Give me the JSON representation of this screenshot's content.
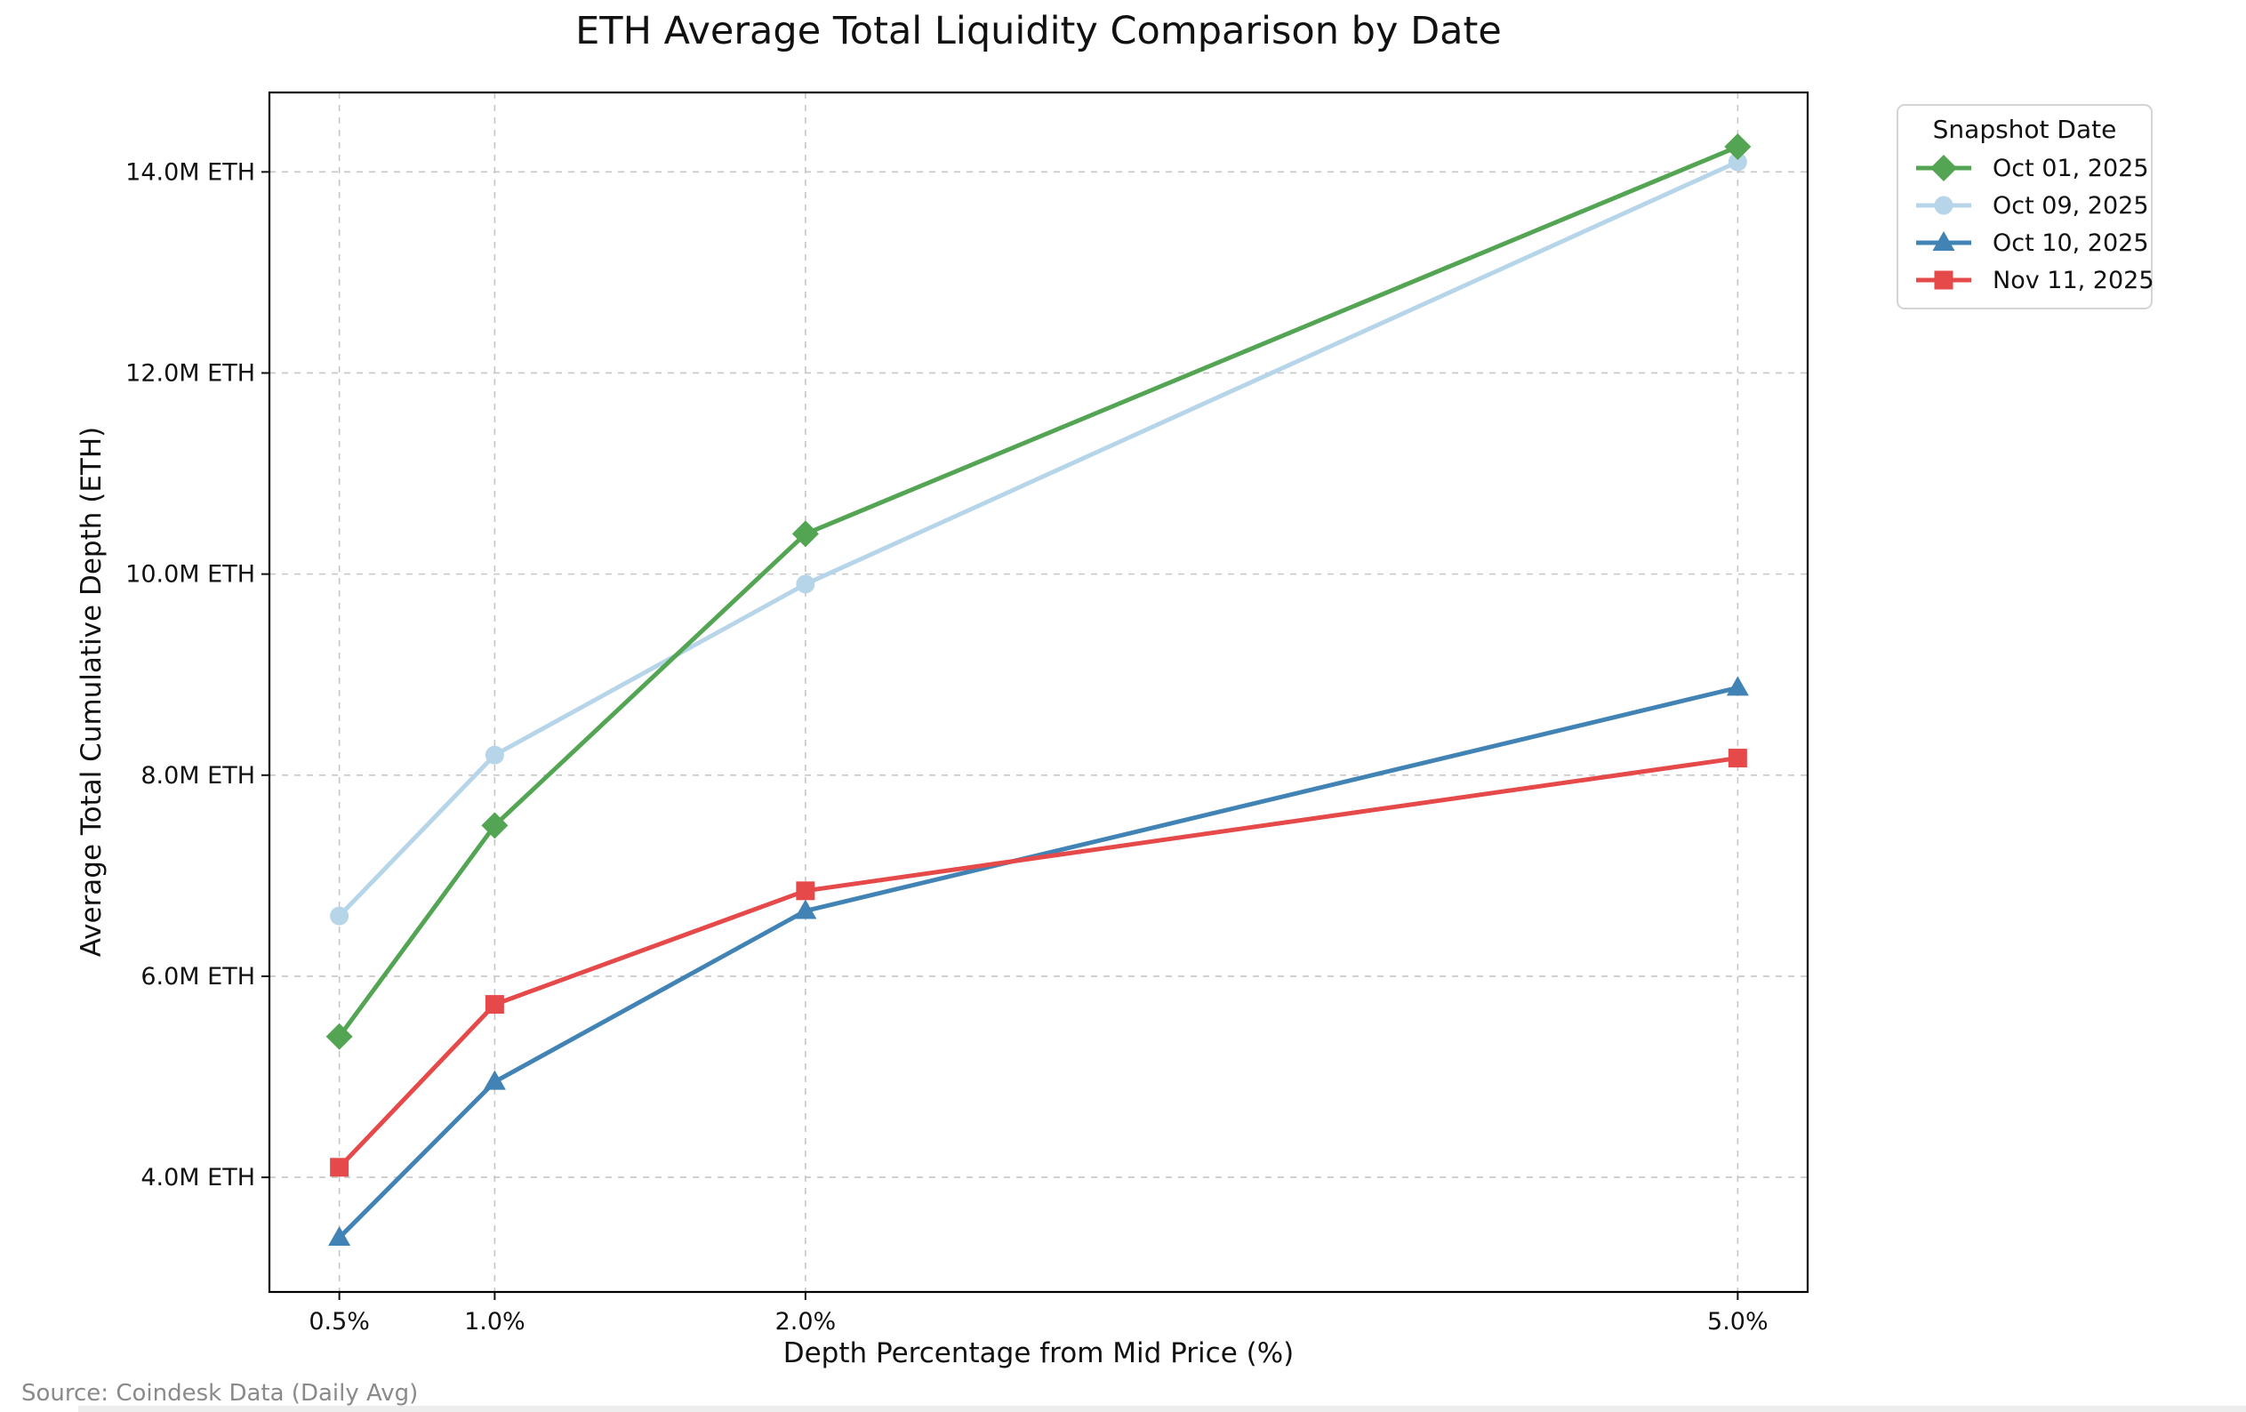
{
  "title": "ETH Average Total Liquidity Comparison by Date",
  "source_note": "Source: Coindesk Data (Daily Avg)",
  "chart_data": {
    "type": "line",
    "title": "ETH Average Total Liquidity Comparison by Date",
    "xlabel": "Depth Percentage from Mid Price (%)",
    "ylabel": "Average Total Cumulative Depth (ETH)",
    "units": "M ETH",
    "x": [
      0.5,
      1.0,
      2.0,
      5.0
    ],
    "x_tick_labels": [
      "0.5%",
      "1.0%",
      "2.0%",
      "5.0%"
    ],
    "y_ticks": [
      4,
      6,
      8,
      10,
      12,
      14
    ],
    "y_tick_labels": [
      "4.0M ETH",
      "6.0M ETH",
      "8.0M ETH",
      "10.0M ETH",
      "12.0M ETH",
      "14.0M ETH"
    ],
    "xlim": [
      0.275,
      5.225
    ],
    "ylim": [
      2.86,
      14.79
    ],
    "grid": "dashed both axes",
    "legend_title": "Snapshot Date",
    "legend_position": "outside upper right",
    "series": [
      {
        "name": "Oct 01, 2025",
        "color": "#53a553",
        "marker": "diamond",
        "values": [
          5.4,
          7.5,
          10.4,
          14.25
        ]
      },
      {
        "name": "Oct 09, 2025",
        "color": "#b7d5e9",
        "marker": "circle",
        "values": [
          6.6,
          8.2,
          9.9,
          14.1
        ]
      },
      {
        "name": "Oct 10, 2025",
        "color": "#4183b4",
        "marker": "triangle",
        "values": [
          3.4,
          4.95,
          6.65,
          8.87
        ]
      },
      {
        "name": "Nov 11, 2025",
        "color": "#e64949",
        "marker": "square",
        "values": [
          4.1,
          5.72,
          6.85,
          8.17
        ]
      }
    ]
  }
}
